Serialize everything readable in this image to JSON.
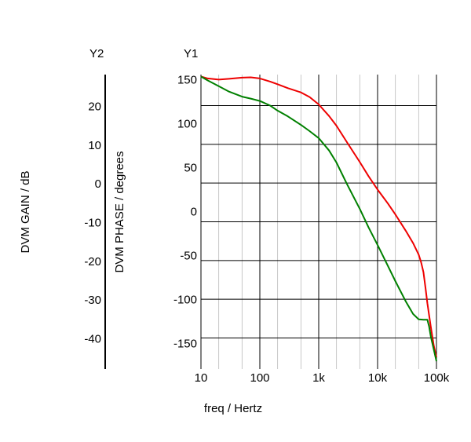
{
  "chart_data": {
    "type": "line",
    "xscale": "log",
    "xlim": [
      10,
      100000
    ],
    "xlabel": "freq / Hertz",
    "xticks": [
      {
        "value": 10,
        "label": "10"
      },
      {
        "value": 100,
        "label": "100"
      },
      {
        "value": 1000,
        "label": "1k"
      },
      {
        "value": 10000,
        "label": "10k"
      },
      {
        "value": 100000,
        "label": "100k"
      }
    ],
    "y1": {
      "tag": "Y1",
      "label": "DVM PHASE / degrees",
      "ylim": [
        -180,
        155
      ],
      "ticks": [
        150,
        100,
        50,
        0,
        -50,
        -100,
        -150
      ]
    },
    "y2": {
      "tag": "Y2",
      "label": "DVM GAIN / dB",
      "ylim": [
        -48,
        28
      ],
      "ticks": [
        20,
        10,
        0,
        -10,
        -20,
        -30,
        -40
      ]
    },
    "grid": true,
    "series": [
      {
        "color": "#ee0000",
        "axis": "y2",
        "x": [
          10,
          13,
          20,
          30,
          50,
          70,
          100,
          150,
          200,
          300,
          500,
          700,
          1000,
          1500,
          2000,
          3000,
          5000,
          7000,
          10000,
          15000,
          20000,
          30000,
          40000,
          50000,
          55000,
          60000,
          65000,
          70000,
          80000,
          90000,
          100000
        ],
        "values": [
          27.5,
          27.0,
          26.7,
          26.9,
          27.2,
          27.3,
          27.0,
          26.2,
          25.5,
          24.5,
          23.4,
          22.2,
          20.3,
          17.3,
          14.8,
          10.6,
          5.4,
          1.8,
          -1.7,
          -5.3,
          -8.1,
          -12.3,
          -15.5,
          -18.5,
          -20.5,
          -23.0,
          -27.0,
          -31.0,
          -37.0,
          -42.0,
          -45.0
        ]
      },
      {
        "color": "#008000",
        "axis": "y2",
        "x": [
          10,
          13,
          20,
          30,
          50,
          70,
          100,
          150,
          200,
          300,
          500,
          700,
          1000,
          1500,
          2000,
          3000,
          5000,
          7000,
          10000,
          15000,
          20000,
          30000,
          40000,
          50000,
          60000,
          70000,
          75000,
          80000,
          90000,
          100000
        ],
        "values": [
          27.5,
          26.5,
          25.0,
          23.6,
          22.3,
          21.8,
          21.2,
          20.0,
          18.7,
          17.2,
          15.0,
          13.4,
          11.6,
          8.4,
          5.3,
          -0.2,
          -6.7,
          -11.4,
          -16.0,
          -21.4,
          -25.3,
          -30.5,
          -33.8,
          -35.2,
          -35.3,
          -35.3,
          -37.0,
          -39.5,
          -43.0,
          -46.0
        ]
      }
    ]
  }
}
